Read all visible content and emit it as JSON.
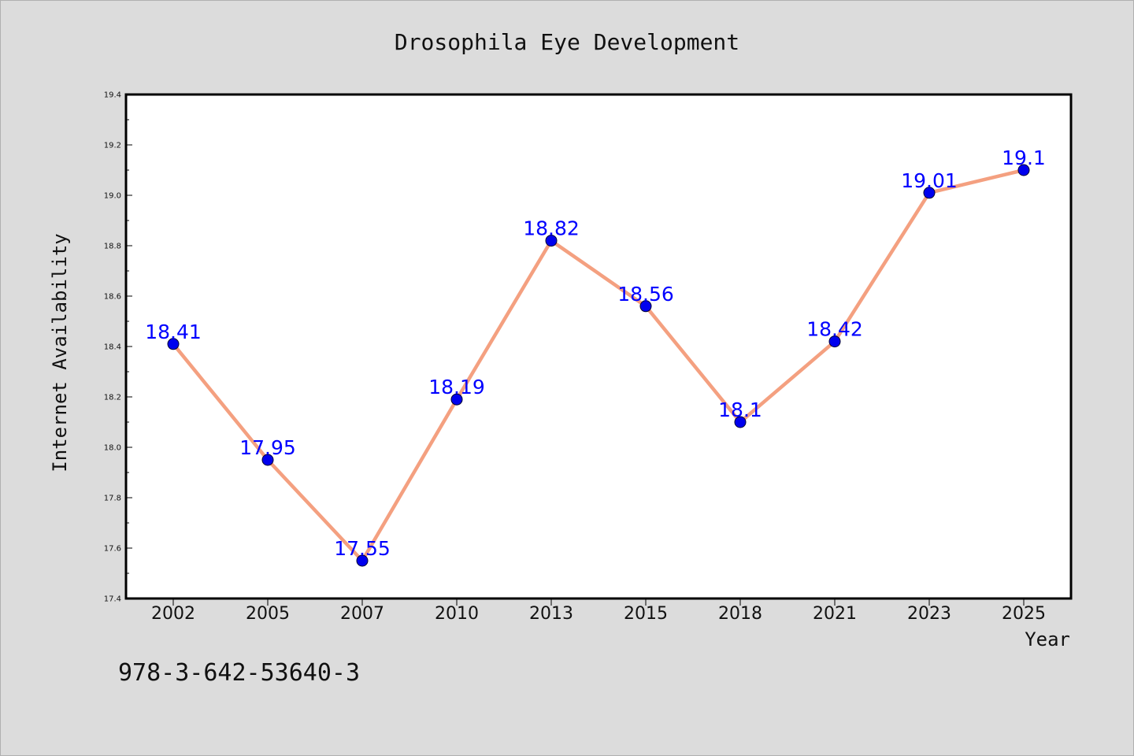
{
  "chart_data": {
    "type": "line",
    "title": "Drosophila Eye Development",
    "xlabel": "Year",
    "ylabel": "Internet Availability",
    "categories": [
      "2002",
      "2005",
      "2007",
      "2010",
      "2013",
      "2015",
      "2018",
      "2021",
      "2023",
      "2025"
    ],
    "values": [
      18.41,
      17.95,
      17.55,
      18.19,
      18.82,
      18.56,
      18.1,
      18.42,
      19.01,
      19.1
    ],
    "data_labels": [
      "18.41",
      "17.95",
      "17.55",
      "18.19",
      "18.82",
      "18.56",
      "18.1",
      "18.42",
      "19.01",
      "19.1"
    ],
    "ylim": [
      17.4,
      19.4
    ],
    "yticks": [
      "17.4",
      "17.6",
      "17.8",
      "18.0",
      "18.2",
      "18.4",
      "18.6",
      "18.8",
      "19.0",
      "19.2",
      "19.4"
    ],
    "grid": false,
    "legend": "none",
    "colors": {
      "line": "#f4a080",
      "marker": "#0000ee",
      "label": "#0000ff",
      "plot_background": "#ffffff",
      "figure_background": "#dcdcdc"
    }
  },
  "footer": {
    "isbn": "978-3-642-53640-3"
  }
}
